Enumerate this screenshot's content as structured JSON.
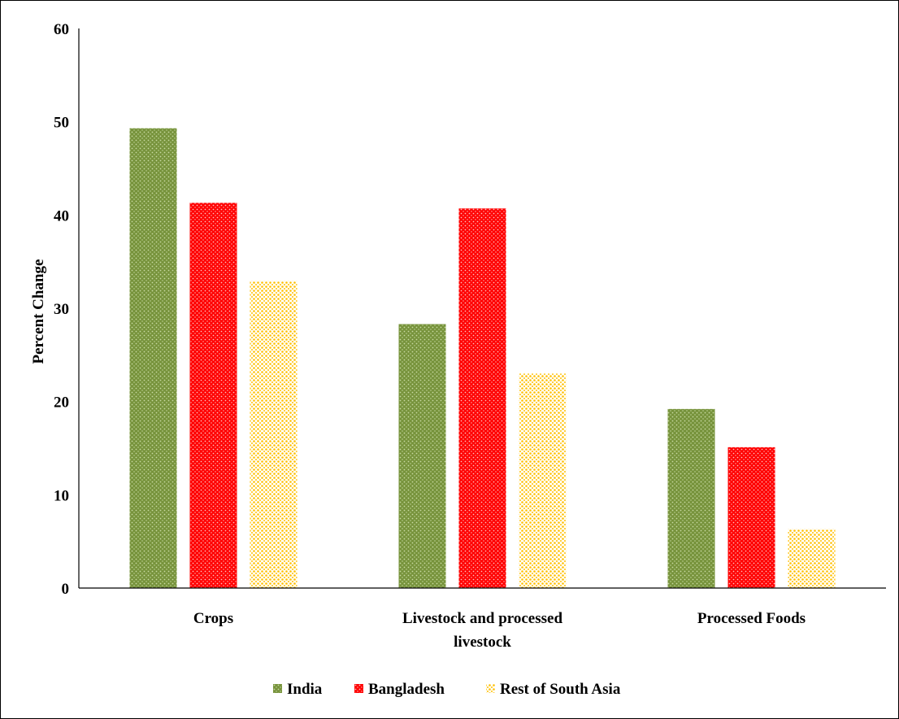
{
  "chart_data": {
    "type": "bar",
    "title": "",
    "xlabel": "",
    "ylabel": "Percent Change",
    "ylim": [
      0,
      60
    ],
    "yticks": [
      0,
      10,
      20,
      30,
      40,
      50,
      60
    ],
    "grid": false,
    "legend_position": "bottom",
    "categories": [
      [
        "Crops"
      ],
      [
        "Livestock and processed",
        "livestock"
      ],
      [
        "Processed Foods"
      ]
    ],
    "series": [
      {
        "name": "India",
        "color": "#77933c",
        "dot_color": "#c6d9a0",
        "values": [
          49.3,
          28.3,
          19.2
        ]
      },
      {
        "name": "Bangladesh",
        "color": "#ff0000",
        "dot_color": "#ffbdbd",
        "values": [
          41.3,
          40.7,
          15.1
        ]
      },
      {
        "name": "Rest of South Asia",
        "color": "#ffc000",
        "dot_color": "#ffffff",
        "values": [
          32.9,
          23.0,
          6.3
        ]
      }
    ]
  }
}
